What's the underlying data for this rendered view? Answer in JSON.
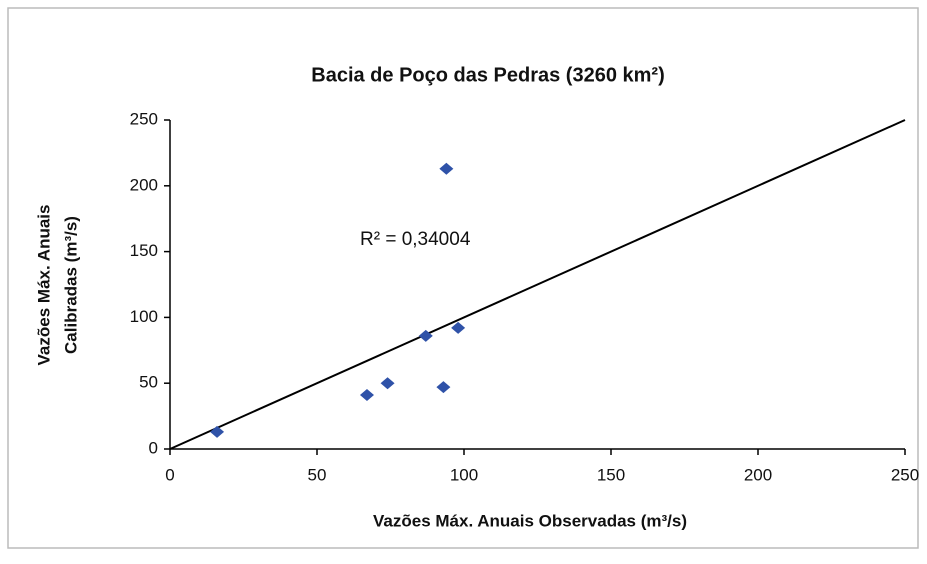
{
  "chart_data": {
    "type": "scatter",
    "title": "Bacia de Poço das Pedras (3260 km²)",
    "x_label": "Vazões Máx. Anuais Observadas (m³/s)",
    "y_label": [
      "Vazões Máx. Anuais",
      "Calibradas (m³/s)"
    ],
    "annotation": "R² = 0,34004",
    "series": [
      {
        "color": "#2f52a8",
        "x": [
          16,
          67,
          74,
          87,
          93,
          94,
          98
        ],
        "values": [
          13,
          41,
          50,
          86,
          47,
          213,
          92
        ]
      }
    ],
    "reference_line": {
      "color": "#000000",
      "x": [
        0,
        250
      ],
      "values": [
        0,
        250
      ]
    },
    "xlim": [
      0,
      250
    ],
    "xticks": [
      0,
      50,
      100,
      150,
      200,
      250
    ],
    "ylim": [
      0,
      250
    ],
    "yticks": [
      0,
      50,
      100,
      150,
      200,
      250
    ],
    "grid": false
  }
}
